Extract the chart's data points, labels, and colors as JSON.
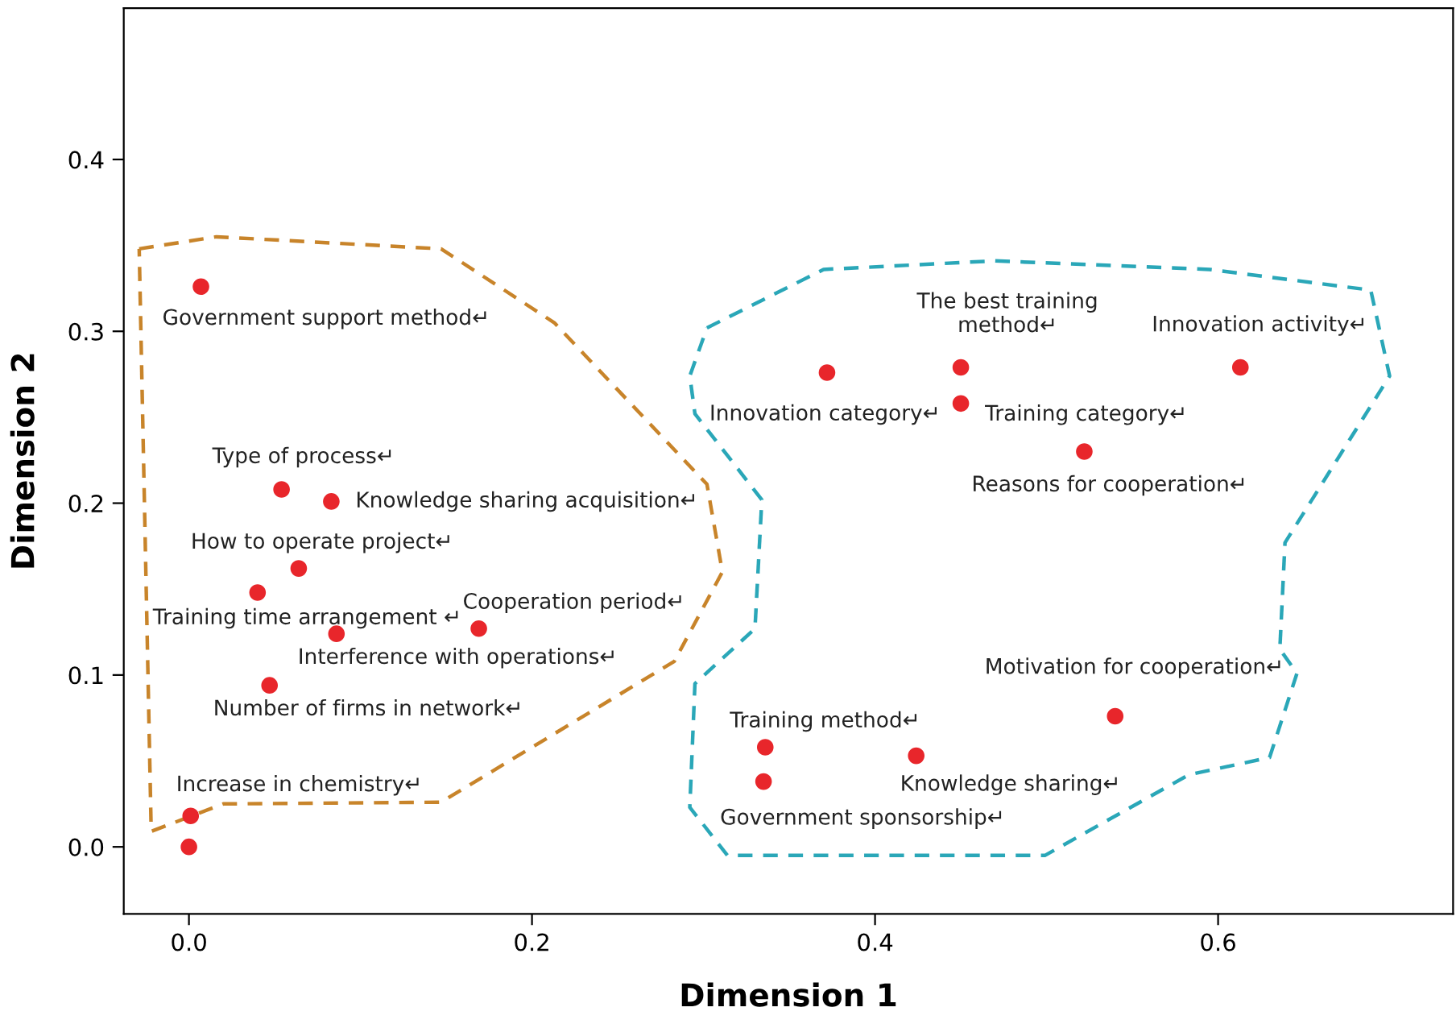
{
  "chart_data": {
    "type": "scatter",
    "xlabel": "Dimension 1",
    "ylabel": "Dimension 2",
    "xlim": [
      -0.038,
      0.737
    ],
    "ylim": [
      -0.039,
      0.488
    ],
    "xticks": [
      {
        "value": 0,
        "label": "0.0"
      },
      0.2,
      0.4,
      0.6
    ],
    "yticks": [
      {
        "value": 0,
        "label": "0.0"
      },
      0.1,
      0.2,
      0.3,
      0.4
    ],
    "grid": false,
    "marker": "circle",
    "series": [
      {
        "color": "#e8262b",
        "x": [
          0.007,
          0.054,
          0.083,
          0.064,
          0.04,
          0.086,
          0.169,
          0.047,
          0.001,
          0.0,
          0.372,
          0.45,
          0.45,
          0.613,
          0.522,
          0.54,
          0.336,
          0.335,
          0.424
        ],
        "values": [
          0.326,
          0.208,
          0.201,
          0.162,
          0.148,
          0.124,
          0.127,
          0.094,
          0.018,
          0.0,
          0.276,
          0.279,
          0.258,
          0.279,
          0.23,
          0.076,
          0.058,
          0.038,
          0.053
        ]
      }
    ],
    "annotations": [
      {
        "text": "Government support method↵",
        "x": 0.007,
        "y": 0.326
      },
      {
        "text": "Type of process↵",
        "x": 0.054,
        "y": 0.208
      },
      {
        "text": "Knowledge sharing acquisition↵",
        "x": 0.083,
        "y": 0.201
      },
      {
        "text": "How to operate project↵",
        "x": 0.064,
        "y": 0.162
      },
      {
        "text": "Training time arrangement ↵",
        "x": 0.04,
        "y": 0.148
      },
      {
        "text": "Interference with operations↵",
        "x": 0.086,
        "y": 0.124
      },
      {
        "text": "Cooperation period↵",
        "x": 0.169,
        "y": 0.127
      },
      {
        "text": "Number of firms in network↵",
        "x": 0.047,
        "y": 0.094
      },
      {
        "text": "Increase in chemistry↵",
        "x": 0.001,
        "y": 0.018
      },
      {
        "text": "Innovation category↵",
        "x": 0.372,
        "y": 0.276
      },
      {
        "text": "The best training\nmethod↵",
        "x": 0.45,
        "y": 0.279
      },
      {
        "text": "Training category↵",
        "x": 0.45,
        "y": 0.258
      },
      {
        "text": "Innovation activity↵",
        "x": 0.613,
        "y": 0.279
      },
      {
        "text": "Reasons for cooperation↵",
        "x": 0.522,
        "y": 0.23
      },
      {
        "text": "Motivation for cooperation↵",
        "x": 0.54,
        "y": 0.076
      },
      {
        "text": "Training method↵",
        "x": 0.336,
        "y": 0.058
      },
      {
        "text": "Government sponsorship↵",
        "x": 0.335,
        "y": 0.038
      },
      {
        "text": "Knowledge sharing↵",
        "x": 0.424,
        "y": 0.053
      }
    ]
  }
}
